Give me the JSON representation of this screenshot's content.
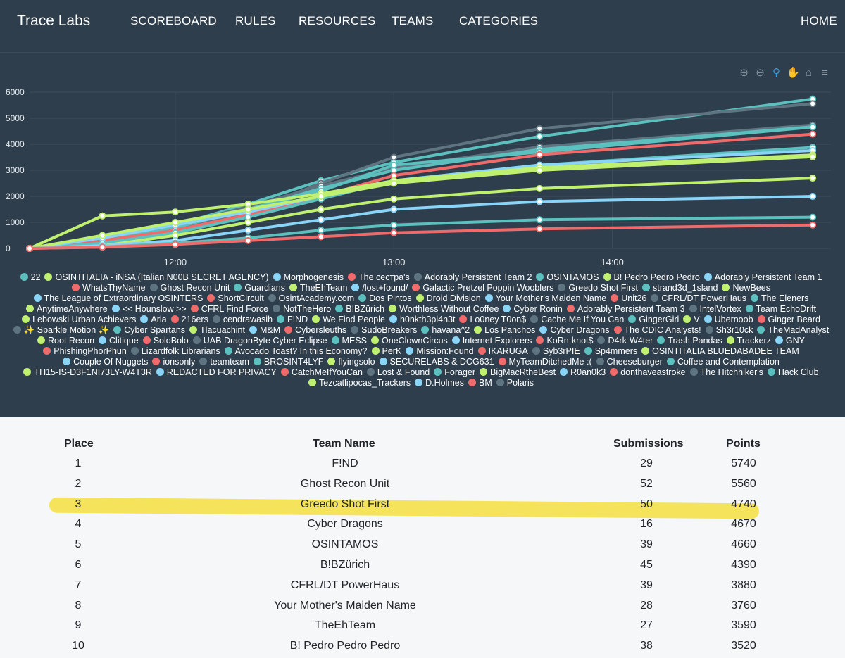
{
  "nav": {
    "brand": "Trace Labs",
    "links": [
      "SCOREBOARD",
      "RULES",
      "RESOURCES",
      "TEAMS",
      "CATEGORIES"
    ],
    "home": "HOME"
  },
  "toolbar": {
    "icons": [
      "zoom-in-icon",
      "zoom-out-icon",
      "zoom-selection-icon",
      "pan-hand-icon",
      "reset-home-icon",
      "menu-icon"
    ]
  },
  "chart_data": {
    "type": "line",
    "x_ticks": [
      "12:00",
      "13:00",
      "14:00"
    ],
    "y_ticks": [
      "0",
      "1000",
      "2000",
      "3000",
      "4000",
      "5000",
      "6000"
    ],
    "ylim": [
      0,
      6000
    ],
    "grid": true,
    "legend_position": "bottom",
    "series": [
      {
        "name": "F!ND",
        "color": "#5bc0be",
        "values": [
          0,
          300,
          900,
          1700,
          2600,
          3300,
          4300,
          5740
        ]
      },
      {
        "name": "Ghost Recon Unit",
        "color": "#5f7481",
        "values": [
          0,
          200,
          700,
          1400,
          2500,
          3500,
          4600,
          5560
        ]
      },
      {
        "name": "Greedo Shot First",
        "color": "#5f7481",
        "values": [
          0,
          200,
          900,
          1600,
          2400,
          3100,
          3900,
          4740
        ]
      },
      {
        "name": "Cyber Dragons",
        "color": "#5bc0be",
        "values": [
          0,
          200,
          800,
          1500,
          2300,
          3000,
          3800,
          4670
        ]
      },
      {
        "name": "OSINTAMOS",
        "color": "#5bc0be",
        "values": [
          0,
          300,
          900,
          1500,
          2200,
          3200,
          3700,
          4660
        ]
      },
      {
        "name": "B!BZürich",
        "color": "#ef6b6b",
        "values": [
          0,
          300,
          700,
          1300,
          2000,
          2800,
          3600,
          4390
        ]
      },
      {
        "name": "CFRL/DT PowerHaus",
        "color": "#5bc0be",
        "values": [
          0,
          200,
          600,
          1200,
          1900,
          2600,
          3200,
          3880
        ]
      },
      {
        "name": "Your Mother's Maiden Name",
        "color": "#8ad4f8",
        "values": [
          0,
          400,
          900,
          1400,
          2000,
          2600,
          3200,
          3760
        ]
      },
      {
        "name": "TheEhTeam",
        "color": "#c0f070",
        "values": [
          0,
          1250,
          1400,
          1700,
          2100,
          2600,
          3100,
          3590
        ]
      },
      {
        "name": "B! Pedro Pedro Pedro",
        "color": "#c0f070",
        "values": [
          0,
          500,
          1000,
          1500,
          2000,
          2500,
          3000,
          3520
        ]
      },
      {
        "name": "Trackerz",
        "color": "#c0f070",
        "values": [
          0,
          100,
          500,
          1000,
          1500,
          1900,
          2300,
          2700
        ]
      },
      {
        "name": "Aria",
        "color": "#8ad4f8",
        "values": [
          0,
          100,
          300,
          700,
          1100,
          1500,
          1800,
          2000
        ]
      },
      {
        "name": "Hack Club",
        "color": "#5bc0be",
        "values": [
          0,
          50,
          200,
          400,
          700,
          900,
          1100,
          1200
        ]
      },
      {
        "name": "BM",
        "color": "#ef6b6b",
        "values": [
          0,
          50,
          150,
          300,
          450,
          600,
          750,
          900
        ]
      }
    ],
    "x_points": [
      "11:20",
      "11:40",
      "12:00",
      "12:20",
      "12:40",
      "13:00",
      "13:40",
      "14:55"
    ]
  },
  "legend": [
    {
      "name": "22",
      "color": "#5bc0be"
    },
    {
      "name": "OSINTITALIA - iNSA (Italian N00B SECRET AGENCY)",
      "color": "#c0f070"
    },
    {
      "name": "Morphogenesis",
      "color": "#8ad4f8"
    },
    {
      "name": "The сестра's",
      "color": "#ef6b6b"
    },
    {
      "name": "Adorably Persistent Team 2",
      "color": "#5f7481"
    },
    {
      "name": "OSINTAMOS",
      "color": "#5bc0be"
    },
    {
      "name": "B! Pedro Pedro Pedro",
      "color": "#c0f070"
    },
    {
      "name": "Adorably Persistent Team 1",
      "color": "#8ad4f8"
    },
    {
      "name": "WhatsThyName",
      "color": "#ef6b6b"
    },
    {
      "name": "Ghost Recon Unit",
      "color": "#5f7481"
    },
    {
      "name": "Guardians",
      "color": "#5bc0be"
    },
    {
      "name": "TheEhTeam",
      "color": "#c0f070"
    },
    {
      "name": "/lost+found/",
      "color": "#8ad4f8"
    },
    {
      "name": "Galactic Pretzel Poppin Wooblers",
      "color": "#ef6b6b"
    },
    {
      "name": "Greedo Shot First",
      "color": "#5f7481"
    },
    {
      "name": "strand3d_1sland",
      "color": "#5bc0be"
    },
    {
      "name": "NewBees",
      "color": "#c0f070"
    },
    {
      "name": "The League of Extraordinary OSINTERS",
      "color": "#8ad4f8"
    },
    {
      "name": "ShortCircuit",
      "color": "#ef6b6b"
    },
    {
      "name": "OsintAcademy.com",
      "color": "#5f7481"
    },
    {
      "name": "Dos Pintos",
      "color": "#5bc0be"
    },
    {
      "name": "Droid Division",
      "color": "#c0f070"
    },
    {
      "name": "Your Mother's Maiden Name",
      "color": "#8ad4f8"
    },
    {
      "name": "Unit26",
      "color": "#ef6b6b"
    },
    {
      "name": "CFRL/DT PowerHaus",
      "color": "#5f7481"
    },
    {
      "name": "The Eleners",
      "color": "#5bc0be"
    },
    {
      "name": "AnytimeAnywhere",
      "color": "#c0f070"
    },
    {
      "name": "<< Hounslow >>",
      "color": "#8ad4f8"
    },
    {
      "name": "CFRL Find Force",
      "color": "#ef6b6b"
    },
    {
      "name": "NotTheHero",
      "color": "#5f7481"
    },
    {
      "name": "B!BZürich",
      "color": "#5bc0be"
    },
    {
      "name": "Worthless Without Coffee",
      "color": "#c0f070"
    },
    {
      "name": "Cyber Ronin",
      "color": "#8ad4f8"
    },
    {
      "name": "Adorably Persistent Team 3",
      "color": "#ef6b6b"
    },
    {
      "name": "IntelVortex",
      "color": "#5f7481"
    },
    {
      "name": "Team EchoDrift",
      "color": "#5bc0be"
    },
    {
      "name": "Lebowski Urban Achievers",
      "color": "#c0f070"
    },
    {
      "name": "Aria",
      "color": "#8ad4f8"
    },
    {
      "name": "216ers",
      "color": "#ef6b6b"
    },
    {
      "name": "cendrawasih",
      "color": "#5f7481"
    },
    {
      "name": "F!ND",
      "color": "#5bc0be"
    },
    {
      "name": "We Find People",
      "color": "#c0f070"
    },
    {
      "name": "h0nkth3pl4n3t",
      "color": "#8ad4f8"
    },
    {
      "name": "Lo0ney T0on$",
      "color": "#ef6b6b"
    },
    {
      "name": "Cache Me If You Can",
      "color": "#5f7481"
    },
    {
      "name": "GingerGirl",
      "color": "#5bc0be"
    },
    {
      "name": "V",
      "color": "#c0f070"
    },
    {
      "name": "Ubernoob",
      "color": "#8ad4f8"
    },
    {
      "name": "Ginger Beard",
      "color": "#ef6b6b"
    },
    {
      "name": "✨ Sparkle Motion ✨",
      "color": "#5f7481"
    },
    {
      "name": "Cyber Spartans",
      "color": "#5bc0be"
    },
    {
      "name": "Tlacuachint",
      "color": "#c0f070"
    },
    {
      "name": "M&M",
      "color": "#8ad4f8"
    },
    {
      "name": "Cybersleuths",
      "color": "#ef6b6b"
    },
    {
      "name": "SudoBreakers",
      "color": "#5f7481"
    },
    {
      "name": "havana^2",
      "color": "#5bc0be"
    },
    {
      "name": "Los Panchos",
      "color": "#c0f070"
    },
    {
      "name": "Cyber Dragons",
      "color": "#8ad4f8"
    },
    {
      "name": "The CDIC Analysts!",
      "color": "#ef6b6b"
    },
    {
      "name": "Sh3r10ck",
      "color": "#5f7481"
    },
    {
      "name": "TheMadAnalyst",
      "color": "#5bc0be"
    },
    {
      "name": "Root Recon",
      "color": "#c0f070"
    },
    {
      "name": "Clitique",
      "color": "#8ad4f8"
    },
    {
      "name": "SoloBolo",
      "color": "#ef6b6b"
    },
    {
      "name": "UAB DragonByte Cyber Eclipse",
      "color": "#5f7481"
    },
    {
      "name": "MESS",
      "color": "#5bc0be"
    },
    {
      "name": "OneClownCircus",
      "color": "#c0f070"
    },
    {
      "name": "Internet Explorers",
      "color": "#8ad4f8"
    },
    {
      "name": "KoRn-knot$",
      "color": "#ef6b6b"
    },
    {
      "name": "D4rk-W4ter",
      "color": "#5f7481"
    },
    {
      "name": "Trash Pandas",
      "color": "#5bc0be"
    },
    {
      "name": "Trackerz",
      "color": "#c0f070"
    },
    {
      "name": "GNY",
      "color": "#8ad4f8"
    },
    {
      "name": "PhishingPhorPhun",
      "color": "#ef6b6b"
    },
    {
      "name": "Lizardfolk Librarians",
      "color": "#5f7481"
    },
    {
      "name": "Avocado Toast? In this Economy?",
      "color": "#5bc0be"
    },
    {
      "name": "PerK",
      "color": "#c0f070"
    },
    {
      "name": "Mission:Found",
      "color": "#8ad4f8"
    },
    {
      "name": "IKARUGA",
      "color": "#ef6b6b"
    },
    {
      "name": "Syb3rPIE",
      "color": "#5f7481"
    },
    {
      "name": "Sp4mmers",
      "color": "#5bc0be"
    },
    {
      "name": "OSINTITALIA BLUEDABADEE TEAM",
      "color": "#c0f070"
    },
    {
      "name": "Couple Of Nuggets",
      "color": "#8ad4f8"
    },
    {
      "name": "ionsonly",
      "color": "#ef6b6b"
    },
    {
      "name": "teamteam",
      "color": "#5f7481"
    },
    {
      "name": "BROSINT4LYF",
      "color": "#5bc0be"
    },
    {
      "name": "flyingsolo",
      "color": "#c0f070"
    },
    {
      "name": "SECURELABS & DCG631",
      "color": "#8ad4f8"
    },
    {
      "name": "MyTeamDitchedMe :(",
      "color": "#ef6b6b"
    },
    {
      "name": "Cheeseburger",
      "color": "#5f7481"
    },
    {
      "name": "Coffee and Contemplation",
      "color": "#5bc0be"
    },
    {
      "name": "TH15-IS-D3F1NI73LY-W4T3R",
      "color": "#c0f070"
    },
    {
      "name": "REDACTED FOR PRIVACY",
      "color": "#8ad4f8"
    },
    {
      "name": "CatchMeIfYouCan",
      "color": "#ef6b6b"
    },
    {
      "name": "Lost & Found",
      "color": "#5f7481"
    },
    {
      "name": "Forager",
      "color": "#5bc0be"
    },
    {
      "name": "BigMacRtheBest",
      "color": "#c0f070"
    },
    {
      "name": "R0an0k3",
      "color": "#8ad4f8"
    },
    {
      "name": "donthaveastroke",
      "color": "#ef6b6b"
    },
    {
      "name": "The Hitchhiker's",
      "color": "#5f7481"
    },
    {
      "name": "Hack Club",
      "color": "#5bc0be"
    },
    {
      "name": "Tezcatlipocas_Trackers",
      "color": "#c0f070"
    },
    {
      "name": "D.Holmes",
      "color": "#8ad4f8"
    },
    {
      "name": "BM",
      "color": "#ef6b6b"
    },
    {
      "name": "Polaris",
      "color": "#5f7481"
    }
  ],
  "table": {
    "headers": {
      "place": "Place",
      "team": "Team Name",
      "submissions": "Submissions",
      "points": "Points"
    },
    "highlighted_place": "3",
    "rows": [
      {
        "place": "1",
        "team": "F!ND",
        "submissions": "29",
        "points": "5740"
      },
      {
        "place": "2",
        "team": "Ghost Recon Unit",
        "submissions": "52",
        "points": "5560"
      },
      {
        "place": "3",
        "team": "Greedo Shot First",
        "submissions": "50",
        "points": "4740"
      },
      {
        "place": "4",
        "team": "Cyber Dragons",
        "submissions": "16",
        "points": "4670"
      },
      {
        "place": "5",
        "team": "OSINTAMOS",
        "submissions": "39",
        "points": "4660"
      },
      {
        "place": "6",
        "team": "B!BZürich",
        "submissions": "45",
        "points": "4390"
      },
      {
        "place": "7",
        "team": "CFRL/DT PowerHaus",
        "submissions": "39",
        "points": "3880"
      },
      {
        "place": "8",
        "team": "Your Mother's Maiden Name",
        "submissions": "28",
        "points": "3760"
      },
      {
        "place": "9",
        "team": "TheEhTeam",
        "submissions": "27",
        "points": "3590"
      },
      {
        "place": "10",
        "team": "B! Pedro Pedro Pedro",
        "submissions": "38",
        "points": "3520"
      }
    ]
  }
}
